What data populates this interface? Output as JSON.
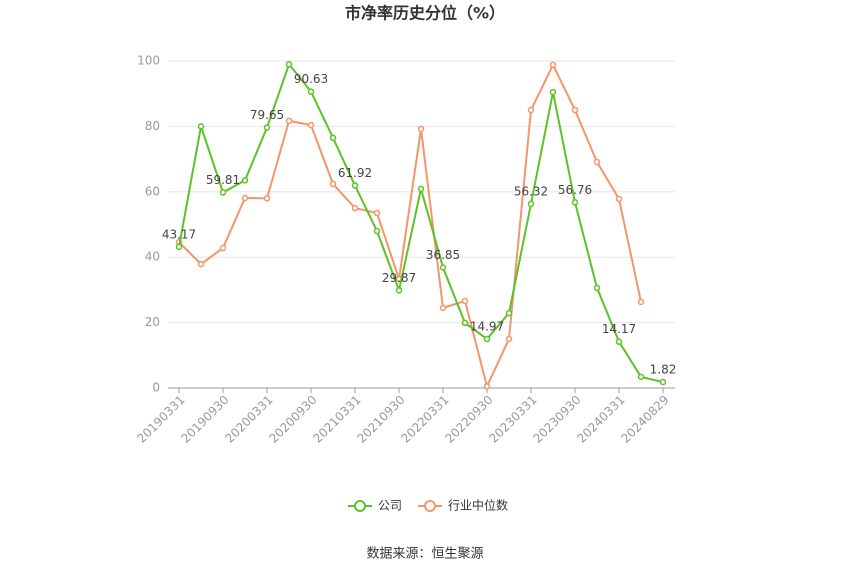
{
  "chart_data": {
    "type": "line",
    "title": "市净率历史分位（%）",
    "source": "数据来源：恒生聚源",
    "categories": [
      "20190331",
      null,
      "20190930",
      null,
      "20200331",
      null,
      "20200930",
      null,
      "20210331",
      null,
      "20210930",
      null,
      "20220331",
      null,
      "20220930",
      null,
      "20230331",
      null,
      "20230930",
      null,
      "20240331",
      null,
      "20240829"
    ],
    "series": [
      {
        "name": "公司",
        "color": "#5cc227",
        "values": [
          43.17,
          80,
          59.81,
          63.5,
          79.65,
          99,
          90.63,
          76.5,
          61.92,
          48,
          29.87,
          60.9,
          36.85,
          19.9,
          14.97,
          22.9,
          56.32,
          90.5,
          56.76,
          30.6,
          14.17,
          3.4,
          1.82
        ],
        "value_labels": [
          "43.17",
          null,
          "59.81",
          null,
          "79.65",
          null,
          "90.63",
          null,
          "61.92",
          null,
          "29.87",
          null,
          "36.85",
          null,
          "14.97",
          null,
          "56.32",
          null,
          "56.76",
          null,
          "14.17",
          null,
          "1.82"
        ]
      },
      {
        "name": "行业中位数",
        "color": "#f4956a",
        "values": [
          44.6,
          37.9,
          42.8,
          58.1,
          58,
          81.7,
          80.4,
          62.4,
          55,
          53.5,
          33.3,
          79.2,
          24.5,
          26.6,
          0.5,
          15,
          85,
          98.8,
          85,
          69.1,
          57.8,
          26.3,
          null
        ]
      }
    ],
    "ylim": [
      0,
      100
    ],
    "yticks": [
      0,
      20,
      40,
      60,
      80,
      100
    ],
    "grid": true,
    "legend": "bottom"
  }
}
